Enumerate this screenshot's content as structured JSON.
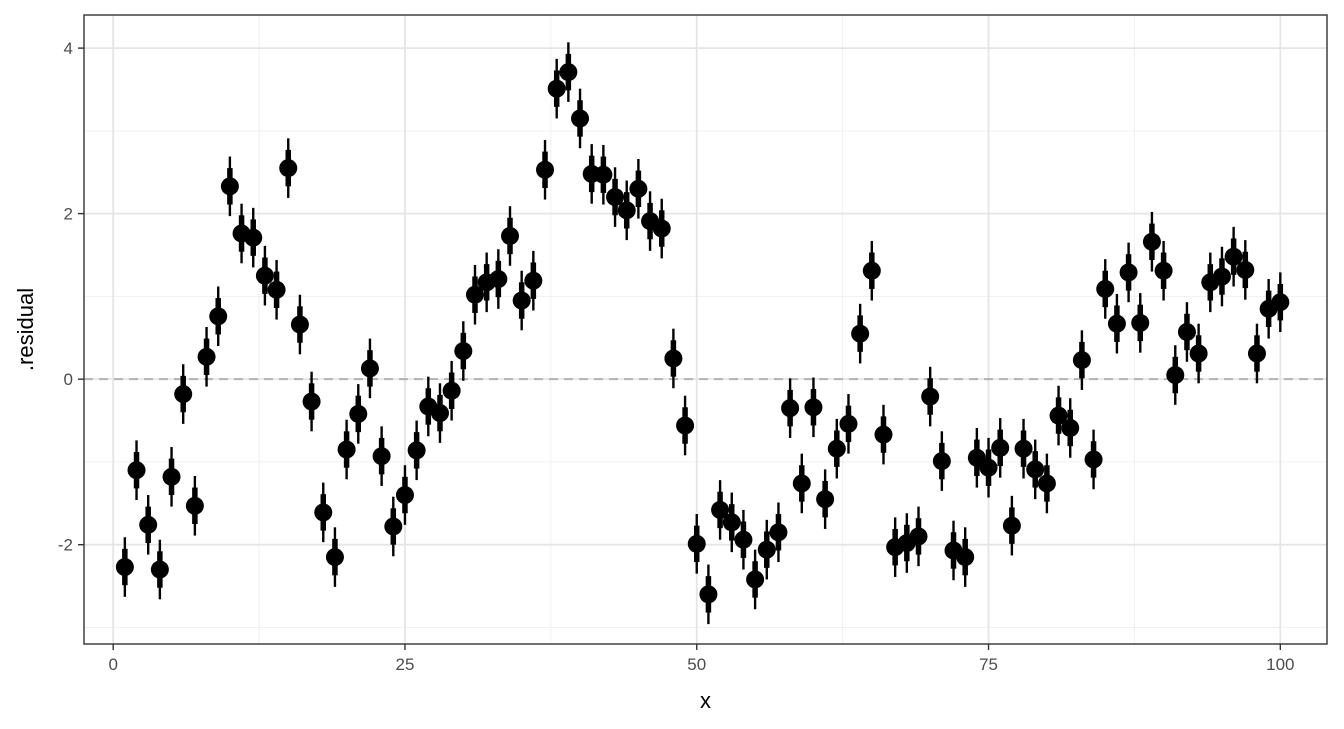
{
  "chart_data": {
    "type": "scatter",
    "title": "",
    "xlabel": "x",
    "ylabel": ".residual",
    "xlim": [
      -2.5,
      104
    ],
    "ylim": [
      -3.2,
      4.4
    ],
    "x_ticks": [
      0,
      25,
      50,
      75,
      100
    ],
    "y_ticks": [
      -2,
      0,
      2,
      4
    ],
    "x_tick_labels": [
      "0",
      "25",
      "50",
      "75",
      "100"
    ],
    "y_tick_labels": [
      "-2",
      "0",
      "2",
      "4"
    ],
    "grid": true,
    "reference_line": {
      "y": 0,
      "style": "dashed",
      "color": "#b3b3b3"
    },
    "point_color": "#000000",
    "interval_inner_halfwidth": 0.22,
    "interval_outer_halfwidth": 0.36,
    "series": [
      {
        "x": [
          1,
          2,
          3,
          4,
          5,
          6,
          7,
          8,
          9,
          10,
          11,
          12,
          13,
          14,
          15,
          16,
          17,
          18,
          19,
          20,
          21,
          22,
          23,
          24,
          25,
          26,
          27,
          28,
          29,
          30,
          31,
          32,
          33,
          34,
          35,
          36,
          37,
          38,
          39,
          40,
          41,
          42,
          43,
          44,
          45,
          46,
          47,
          48,
          49,
          50,
          51,
          52,
          53,
          54,
          55,
          56,
          57,
          58,
          59,
          60,
          61,
          62,
          63,
          64,
          65,
          66,
          67,
          68,
          69,
          70,
          71,
          72,
          73,
          74,
          75,
          76,
          77,
          78,
          79,
          80,
          81,
          82,
          83,
          84,
          85,
          86,
          87,
          88,
          89,
          90,
          91,
          92,
          93,
          94,
          95,
          96,
          97,
          98,
          99,
          100
        ],
        "y": [
          -2.27,
          -1.1,
          -1.76,
          -2.3,
          -1.18,
          -0.18,
          -1.53,
          0.27,
          0.76,
          2.33,
          1.76,
          1.71,
          1.25,
          1.08,
          2.55,
          0.66,
          -0.27,
          -1.61,
          -2.15,
          -0.85,
          -0.42,
          0.13,
          -0.93,
          -1.78,
          -1.4,
          -0.86,
          -0.33,
          -0.41,
          -0.14,
          0.34,
          1.02,
          1.17,
          1.21,
          1.73,
          0.95,
          1.19,
          2.53,
          3.51,
          3.71,
          3.15,
          2.48,
          2.47,
          2.2,
          2.04,
          2.3,
          1.91,
          1.82,
          0.25,
          -0.56,
          -1.99,
          -2.6,
          -1.58,
          -1.73,
          -1.94,
          -2.42,
          -2.06,
          -1.85,
          -0.35,
          -1.26,
          -0.34,
          -1.45,
          -0.84,
          -0.54,
          0.55,
          1.31,
          -0.67,
          -2.03,
          -1.98,
          -1.9,
          -0.21,
          -0.99,
          -2.07,
          -2.15,
          -0.95,
          -1.07,
          -0.83,
          -1.77,
          -0.84,
          -1.09,
          -1.26,
          -0.44,
          -0.59,
          0.23,
          -0.97,
          1.09,
          0.67,
          1.29,
          0.68,
          1.66,
          1.31,
          0.05,
          0.57,
          0.31,
          1.17,
          1.24,
          1.48,
          1.32,
          0.31,
          0.85,
          0.93
        ]
      }
    ]
  }
}
